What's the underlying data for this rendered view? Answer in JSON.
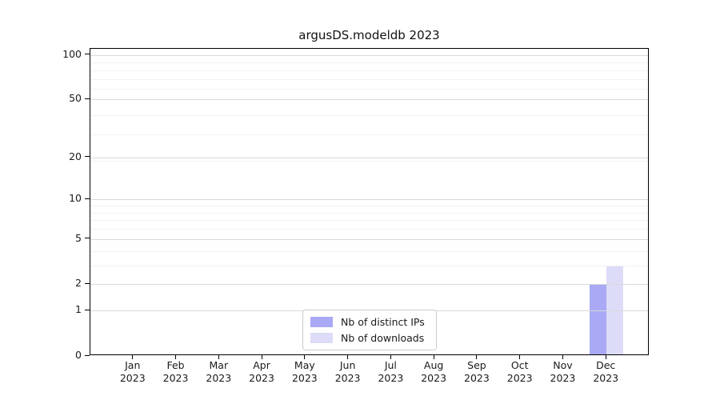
{
  "chart_data": {
    "type": "bar",
    "title": "argusDS.modeldb 2023",
    "categories": [
      "Jan",
      "Feb",
      "Mar",
      "Apr",
      "May",
      "Jun",
      "Jul",
      "Aug",
      "Sep",
      "Oct",
      "Nov",
      "Dec"
    ],
    "category_year": "2023",
    "series": [
      {
        "name": "Nb of distinct IPs",
        "color": "#a9a9f5",
        "values": [
          0,
          0,
          0,
          0,
          0,
          0,
          0,
          0,
          0,
          0,
          0,
          2
        ]
      },
      {
        "name": "Nb of downloads",
        "color": "#dcdcf8",
        "values": [
          0,
          0,
          0,
          0,
          0,
          0,
          0,
          0,
          0,
          0,
          0,
          3
        ]
      }
    ],
    "yscale": "log1p",
    "yticks": [
      0,
      1,
      2,
      5,
      10,
      20,
      50,
      100
    ],
    "ylim": [
      0,
      110
    ],
    "minor_grid_values": [
      3,
      4,
      6,
      7,
      8,
      9,
      19,
      29,
      39,
      59,
      69,
      79,
      89
    ],
    "grid": true,
    "legend_position": "bottom-center",
    "colors": {
      "major_grid": "#d9d9d9",
      "minor_grid": "#f2f2f2",
      "axis": "#000000",
      "text": "#1a1a1a",
      "background": "#ffffff"
    }
  }
}
